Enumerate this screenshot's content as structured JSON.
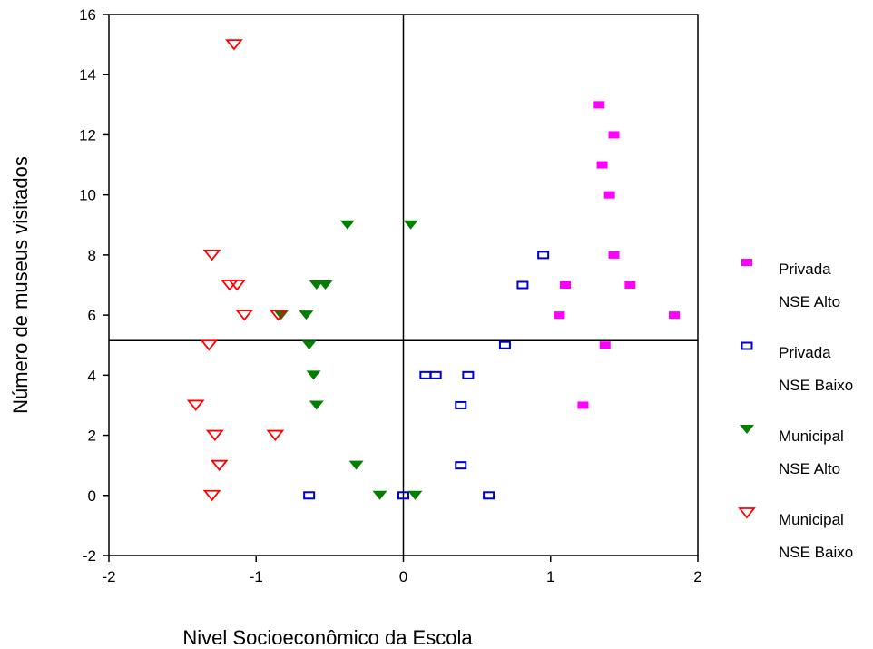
{
  "chart_data": {
    "type": "scatter",
    "xlabel": "Nivel Socioeconômico da Escola",
    "ylabel": "Número de museus visitados",
    "xlim": [
      -2,
      2
    ],
    "ylim": [
      -2,
      16
    ],
    "x_ticks": [
      "-2",
      "-1",
      "0",
      "1",
      "2"
    ],
    "y_ticks": [
      "-2",
      "0",
      "2",
      "4",
      "6",
      "8",
      "10",
      "12",
      "14",
      "16"
    ],
    "reference_lines": {
      "x": 0,
      "y": 5.15
    },
    "grid": false,
    "legend_position": "right",
    "series": [
      {
        "name_line1": "Privada",
        "name_line2": "NSE Alto",
        "marker": "filled-square",
        "color": "#ff00ff",
        "points": [
          [
            1.33,
            13
          ],
          [
            1.43,
            12
          ],
          [
            1.35,
            11
          ],
          [
            1.4,
            10
          ],
          [
            1.43,
            8
          ],
          [
            1.1,
            7
          ],
          [
            1.54,
            7
          ],
          [
            1.06,
            6
          ],
          [
            1.84,
            6
          ],
          [
            1.37,
            5
          ],
          [
            1.22,
            3
          ]
        ]
      },
      {
        "name_line1": "Privada",
        "name_line2": "NSE Baixo",
        "marker": "open-square",
        "color": "#0000cc",
        "points": [
          [
            0.95,
            8
          ],
          [
            0.81,
            7
          ],
          [
            0.69,
            5
          ],
          [
            0.15,
            4
          ],
          [
            0.22,
            4
          ],
          [
            0.44,
            4
          ],
          [
            0.39,
            3
          ],
          [
            0.39,
            1
          ],
          [
            -0.64,
            0
          ],
          [
            0.0,
            0
          ],
          [
            0.58,
            0
          ]
        ]
      },
      {
        "name_line1": "Municipal",
        "name_line2": "NSE Alto",
        "marker": "filled-triangle-down",
        "color": "#008000",
        "points": [
          [
            -0.38,
            9
          ],
          [
            0.05,
            9
          ],
          [
            -0.59,
            7
          ],
          [
            -0.53,
            7
          ],
          [
            -0.83,
            6
          ],
          [
            -0.66,
            6
          ],
          [
            -0.64,
            5
          ],
          [
            -0.61,
            4
          ],
          [
            -0.59,
            3
          ],
          [
            -0.32,
            1
          ],
          [
            -0.16,
            0
          ],
          [
            0.08,
            0
          ]
        ]
      },
      {
        "name_line1": "Municipal",
        "name_line2": "NSE Baixo",
        "marker": "open-triangle-down",
        "color": "#ff0000",
        "points": [
          [
            -1.15,
            15
          ],
          [
            -1.3,
            8
          ],
          [
            -1.18,
            7
          ],
          [
            -1.13,
            7
          ],
          [
            -1.08,
            6
          ],
          [
            -0.85,
            6
          ],
          [
            -1.32,
            5
          ],
          [
            -1.41,
            3
          ],
          [
            -1.28,
            2
          ],
          [
            -0.87,
            2
          ],
          [
            -1.25,
            1
          ],
          [
            -1.3,
            0
          ]
        ]
      }
    ]
  }
}
